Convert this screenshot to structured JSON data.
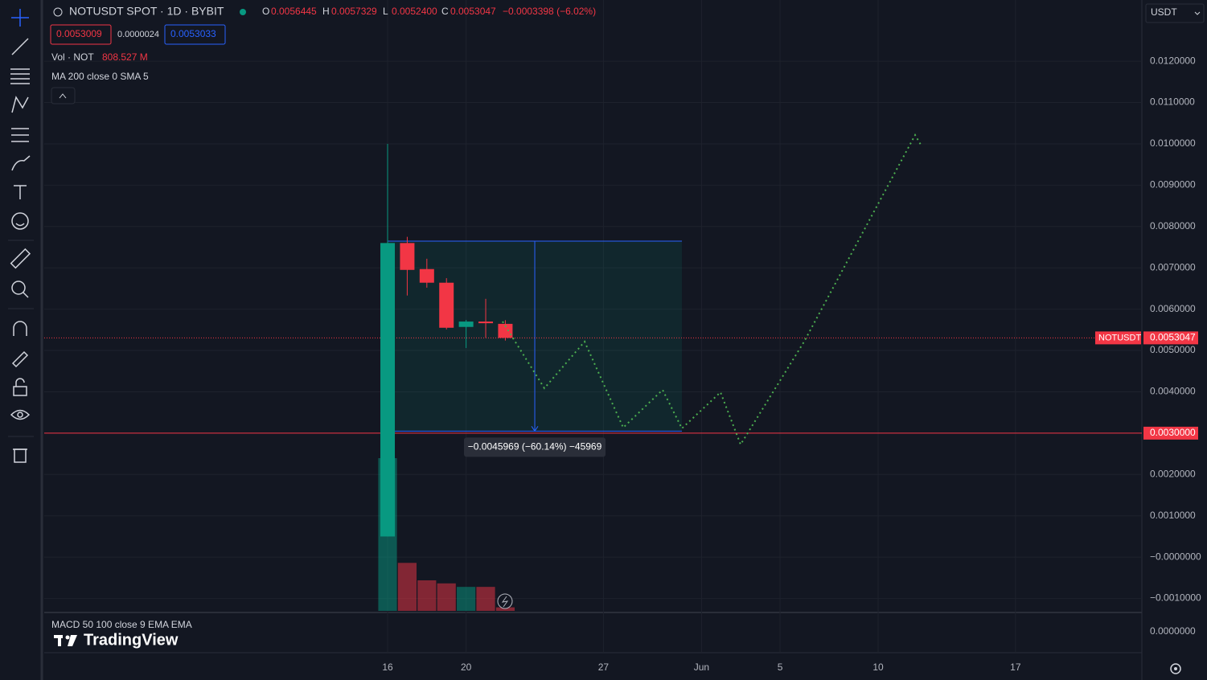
{
  "header": {
    "symbol": "NOTUSDT SPOT · 1D · BYBIT",
    "o_label": "O",
    "o": "0.0056445",
    "h_label": "H",
    "h": "0.0057329",
    "l_label": "L",
    "l": "0.0052400",
    "c_label": "C",
    "c": "0.0053047",
    "change": "−0.0003398 (−6.02%)",
    "sell": "0.0053009",
    "spread": "0.0000024",
    "buy": "0.0053033",
    "currency": "USDT"
  },
  "indicators": {
    "vol_name": "Vol · NOT",
    "vol_value": "808.527 M",
    "ma": "MA 200 close 0 SMA 5",
    "macd": "MACD 50 100 close 9 EMA EMA",
    "macd_zero": "0.0000000"
  },
  "logo": "TradingView",
  "chart_data": {
    "type": "candlestick",
    "x": [
      16,
      17,
      18,
      19,
      20,
      21,
      22
    ],
    "open": [
      0.0005,
      0.0076,
      0.00697,
      0.00664,
      0.00557,
      0.0057,
      0.0056445
    ],
    "high": [
      0.01,
      0.00775,
      0.00722,
      0.00675,
      0.00574,
      0.00625,
      0.0057329
    ],
    "low": [
      0.0005,
      0.00633,
      0.00652,
      0.00551,
      0.00506,
      0.00531,
      0.00524
    ],
    "close": [
      0.0076,
      0.00695,
      0.00664,
      0.00555,
      0.0057,
      0.00566,
      0.0053047
    ],
    "up_color": "#089981",
    "down_color": "#f23645",
    "volume": [
      35000,
      11000,
      7000,
      6300,
      5500,
      5500,
      808.527
    ],
    "volume_lim": [
      0,
      140000
    ],
    "xlim": [
      -1.5,
      54.44
    ],
    "xticks": [
      16,
      20,
      27,
      {
        "value": 32,
        "label": "Jun"
      },
      {
        "value": 36,
        "label": "5"
      },
      {
        "value": 41,
        "label": "10"
      },
      {
        "value": 48,
        "label": "17"
      }
    ],
    "ylim": [
      -0.0013,
      0.01348
    ],
    "yticks": [
      {
        "value": 0.012,
        "label": "0.0120000"
      },
      {
        "value": 0.011,
        "label": "0.0110000"
      },
      {
        "value": 0.01,
        "label": "0.0100000"
      },
      {
        "value": 0.009,
        "label": "0.0090000"
      },
      {
        "value": 0.008,
        "label": "0.0080000"
      },
      {
        "value": 0.007,
        "label": "0.0070000"
      },
      {
        "value": 0.006,
        "label": "0.0060000"
      },
      {
        "value": 0.005,
        "label": "0.0050000"
      },
      {
        "value": 0.004,
        "label": "0.0040000"
      },
      {
        "value": 0.003,
        "label": "0.0030000"
      },
      {
        "value": 0.002,
        "label": "0.0020000"
      },
      {
        "value": 0.001,
        "label": "0.0010000"
      },
      {
        "value": 0,
        "label": "−0.0000000"
      },
      {
        "value": -0.001,
        "label": "−0.0010000"
      }
    ],
    "grid": true,
    "hline": {
      "value": 0.003,
      "label": "0.0030000",
      "color": "#f23645"
    },
    "last_price": {
      "value": 0.0053047,
      "label": "0.0053047",
      "name": "NOTUSDT"
    },
    "measure": {
      "x_from": 16,
      "x_to": 31,
      "from": 0.0076469,
      "to": 0.00305,
      "label": "−0.0045969 (−60.14%) −45969"
    }
  }
}
